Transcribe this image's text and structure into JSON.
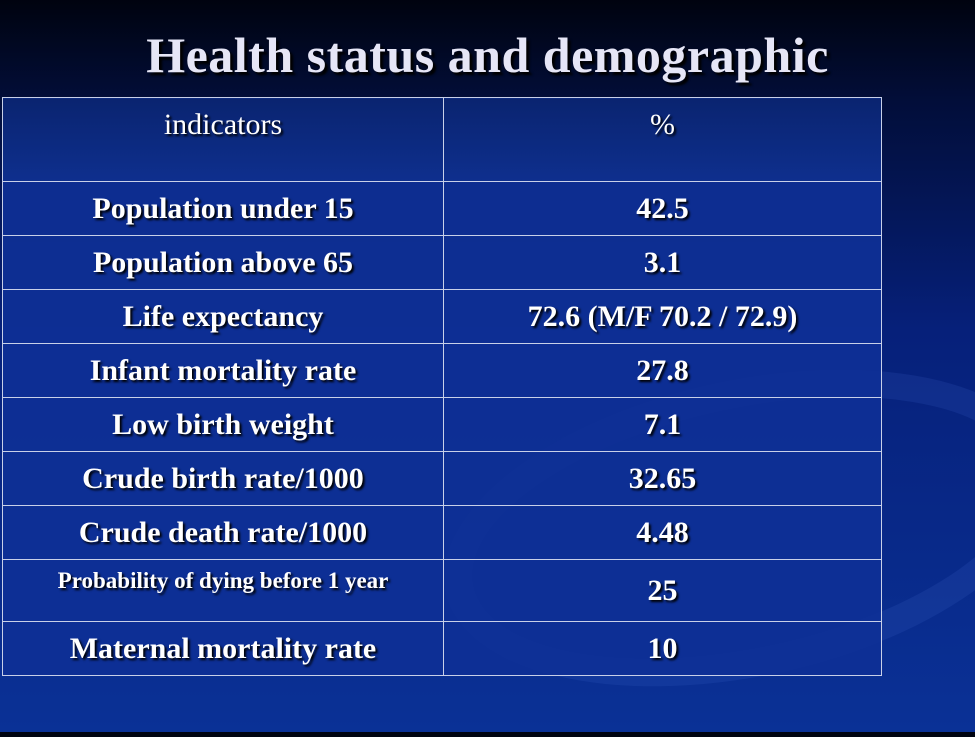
{
  "title": "Health status and demographic",
  "table": {
    "headers": [
      "indicators",
      "%"
    ],
    "rows": [
      [
        "Population under 15",
        "42.5"
      ],
      [
        "Population above 65",
        "3.1"
      ],
      [
        "Life expectancy",
        "72.6 (M/F 70.2 / 72.9)"
      ],
      [
        "Infant mortality rate",
        "27.8"
      ],
      [
        "Low birth weight",
        "7.1"
      ],
      [
        "Crude birth rate/1000",
        "32.65"
      ],
      [
        "Crude death rate/1000",
        "4.48"
      ],
      [
        "Probability of dying before 1 year",
        "25"
      ],
      [
        "Maternal mortality rate",
        "10"
      ]
    ]
  }
}
